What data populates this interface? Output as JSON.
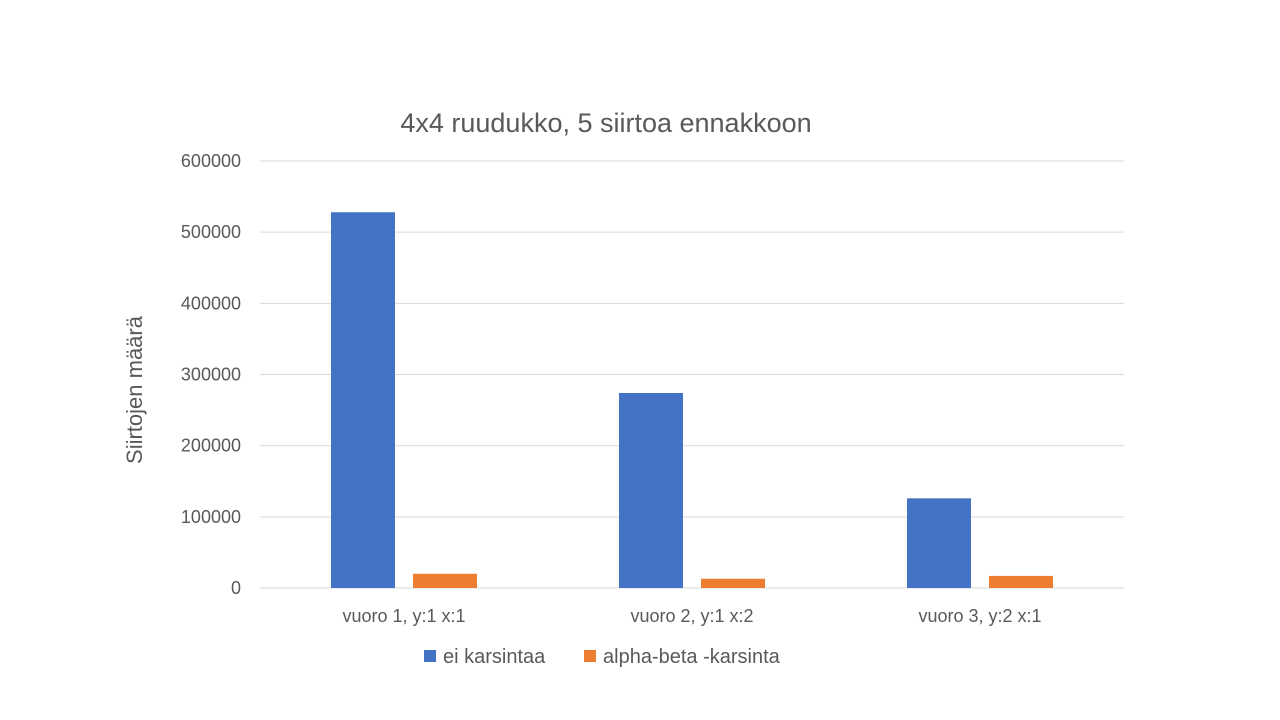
{
  "chart_data": {
    "type": "bar",
    "title": "4x4 ruudukko, 5 siirtoa ennakkoon",
    "xlabel": "",
    "ylabel": "Siirtojen määrä",
    "categories": [
      "vuoro 1, y:1 x:1",
      "vuoro 2, y:1 x:2",
      "vuoro 3, y:2 x:1"
    ],
    "series": [
      {
        "name": "ei karsintaa",
        "color": "#4472c4",
        "values": [
          528000,
          274000,
          126000
        ]
      },
      {
        "name": "alpha-beta -karsinta",
        "color": "#ed7d31",
        "values": [
          20000,
          13000,
          17000
        ]
      }
    ],
    "ylim": [
      0,
      600000
    ],
    "yticks": [
      "0",
      "100000",
      "200000",
      "300000",
      "400000",
      "500000",
      "600000"
    ],
    "grid": true,
    "legend_position": "bottom"
  }
}
